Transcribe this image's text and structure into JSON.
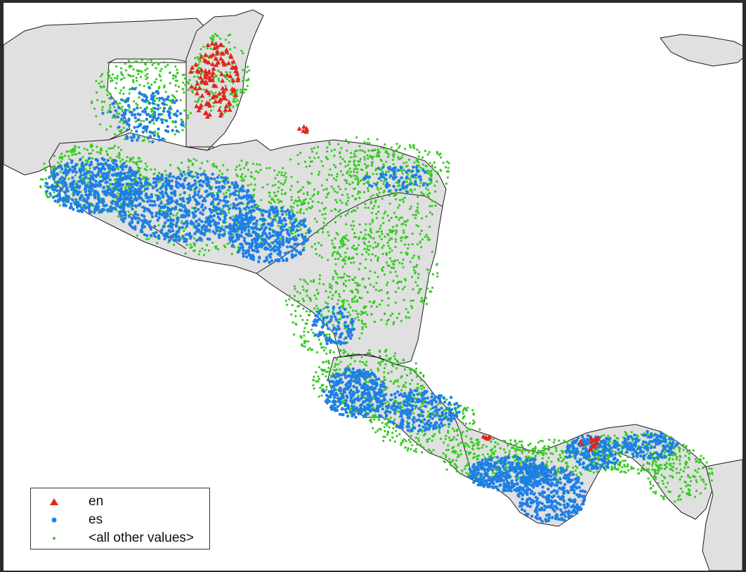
{
  "map": {
    "colors": {
      "land": "#e0e0e0",
      "border": "#1a1a1a",
      "water": "#ffffff"
    }
  },
  "legend": {
    "position": "bottom-left",
    "items": [
      {
        "label": "en",
        "symbol": "triangle-icon",
        "color": "#e0261d"
      },
      {
        "label": "es",
        "symbol": "circle-icon",
        "color": "#1f7fe6"
      },
      {
        "label": "<all other values>",
        "symbol": "dot-icon",
        "color": "#33cc1f"
      }
    ]
  }
}
